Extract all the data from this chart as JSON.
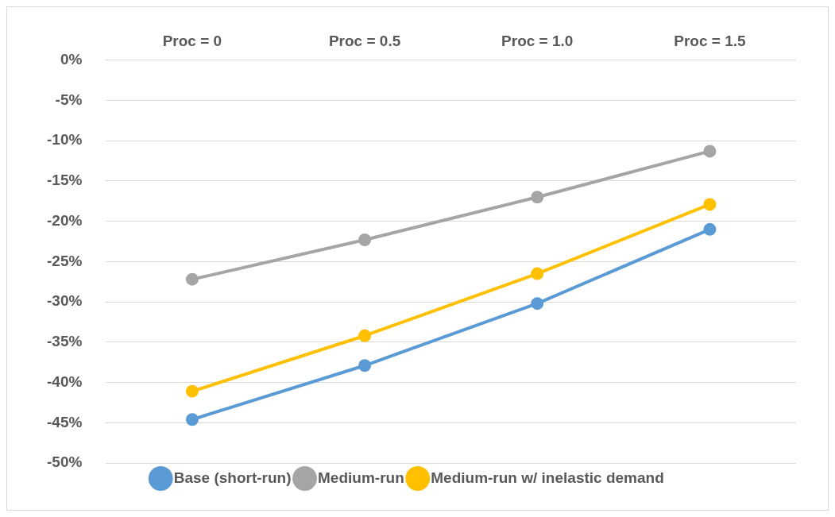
{
  "chart_data": {
    "type": "line",
    "categories": [
      "Proc = 0",
      "Proc = 0.5",
      "Proc = 1.0",
      "Proc = 1.5"
    ],
    "series": [
      {
        "name": "Base (short-run)",
        "color": "#5b9bd5",
        "values": [
          -44.6,
          -37.9,
          -30.2,
          -21.0
        ]
      },
      {
        "name": "Medium-run",
        "color": "#a5a5a5",
        "values": [
          -27.2,
          -22.3,
          -17.0,
          -11.3
        ]
      },
      {
        "name": "Medium-run w/ inelastic demand",
        "color": "#ffc000",
        "values": [
          -41.1,
          -34.2,
          -26.5,
          -17.9
        ]
      }
    ],
    "ylim": [
      -50,
      0
    ],
    "yticks": [
      {
        "value": -50,
        "label": "-50%"
      },
      {
        "value": -45,
        "label": "-45%"
      },
      {
        "value": -40,
        "label": "-40%"
      },
      {
        "value": -35,
        "label": "-35%"
      },
      {
        "value": -30,
        "label": "-30%"
      },
      {
        "value": -25,
        "label": "-25%"
      },
      {
        "value": -20,
        "label": "-20%"
      },
      {
        "value": -15,
        "label": "-15%"
      },
      {
        "value": -10,
        "label": "-10%"
      },
      {
        "value": -5,
        "label": "-5%"
      },
      {
        "value": 0,
        "label": "0%"
      }
    ],
    "grid": "y",
    "legend": "bottom",
    "marker": "circle",
    "line_style": "solid"
  }
}
